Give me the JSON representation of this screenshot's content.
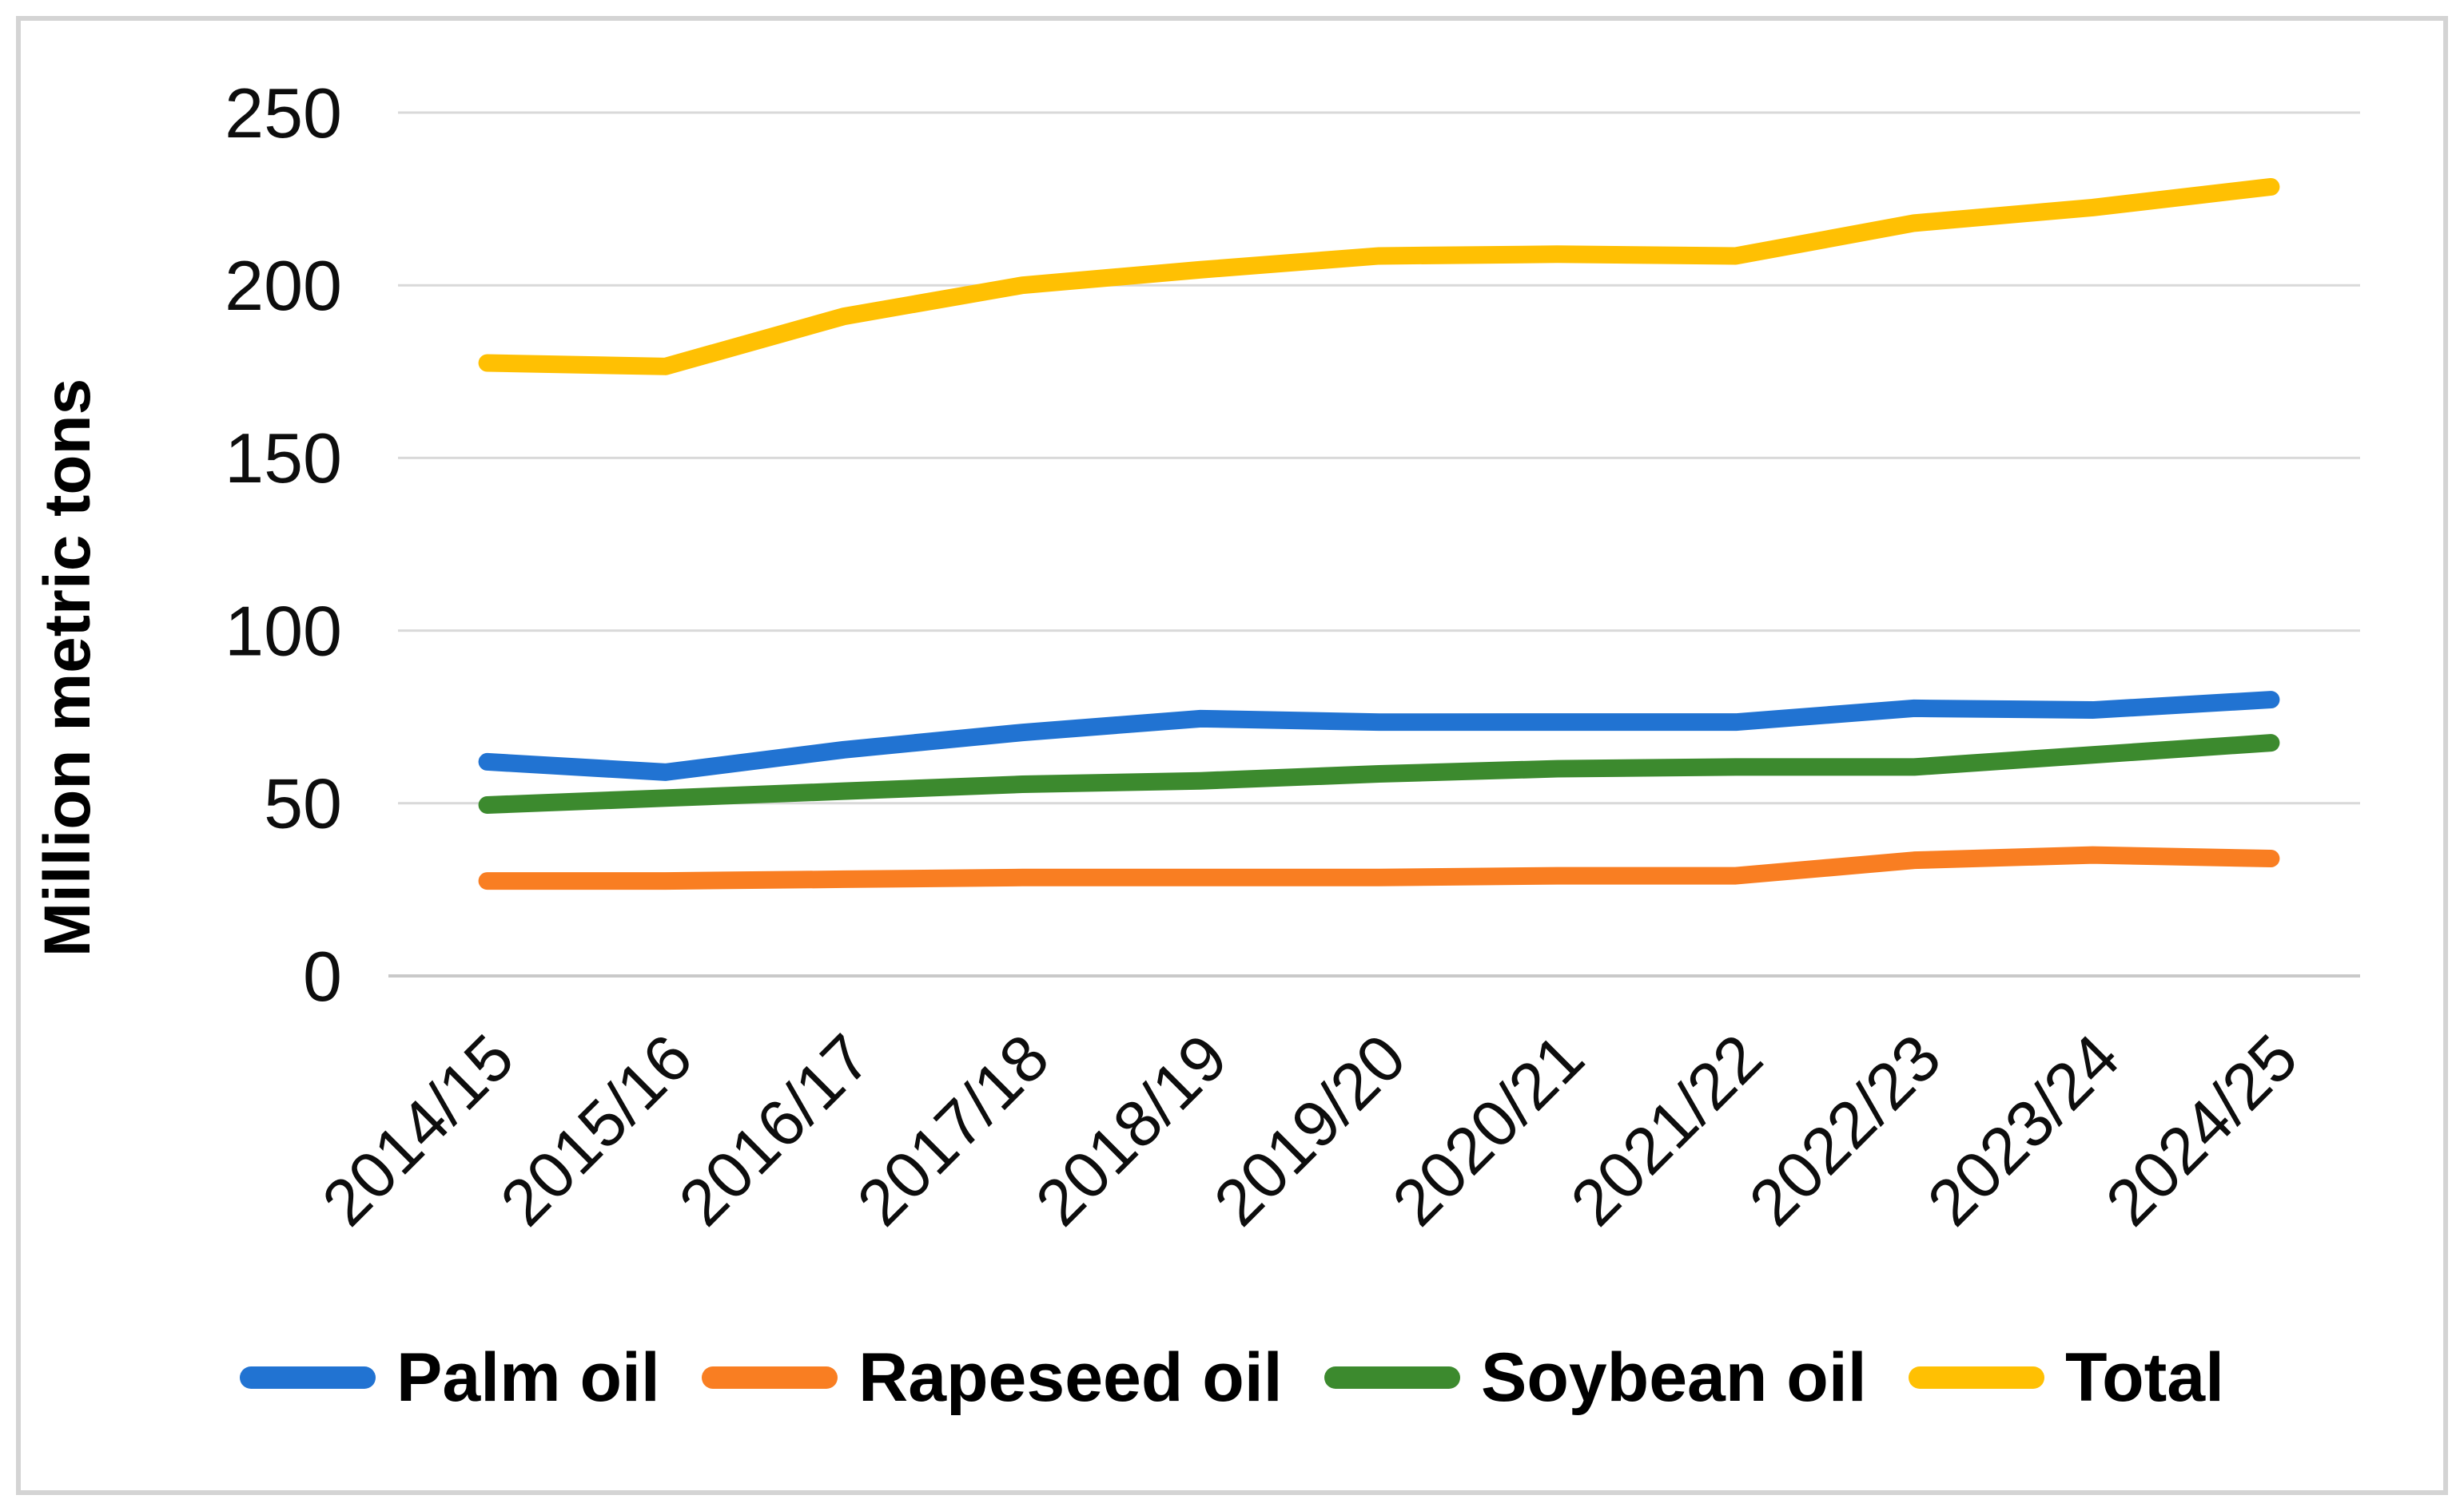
{
  "figure": {
    "background_color": "#ffffff",
    "border_color": "#d4d4d4",
    "gridline_color": "#d9d9d9"
  },
  "chart_data": {
    "type": "line",
    "title": "",
    "xlabel": "",
    "ylabel": "Million metric tons",
    "ylim": [
      0,
      250
    ],
    "yticks": [
      0,
      50,
      100,
      150,
      200,
      250
    ],
    "grid": "horizontal",
    "legend_position": "bottom",
    "categories": [
      "2014/15",
      "2015/16",
      "2016/17",
      "2017/18",
      "2018/19",
      "2019/20",
      "2020/21",
      "2021/22",
      "2022/23",
      "2023/24",
      "2024/25"
    ],
    "series": [
      {
        "name": "Palm oil",
        "color": "#2173d2",
        "values": [
          62,
          59,
          65.5,
          70.5,
          74.5,
          73.5,
          73.5,
          73.5,
          77.5,
          77,
          80
        ]
      },
      {
        "name": "Rapeseed oil",
        "color": "#f97e22",
        "values": [
          27.5,
          27.5,
          28,
          28.5,
          28.5,
          28.5,
          29,
          29,
          33.5,
          35,
          34
        ]
      },
      {
        "name": "Soybean oil",
        "color": "#3c8a2e",
        "values": [
          49.5,
          51.5,
          53.5,
          55.5,
          56.5,
          58.5,
          60,
          60.5,
          60.5,
          64,
          67.5
        ]
      },
      {
        "name": "Total",
        "color": "#ffc003",
        "values": [
          177.5,
          176.5,
          191,
          200,
          204.5,
          208.5,
          209,
          208.5,
          218,
          222.5,
          228.5
        ]
      }
    ]
  }
}
